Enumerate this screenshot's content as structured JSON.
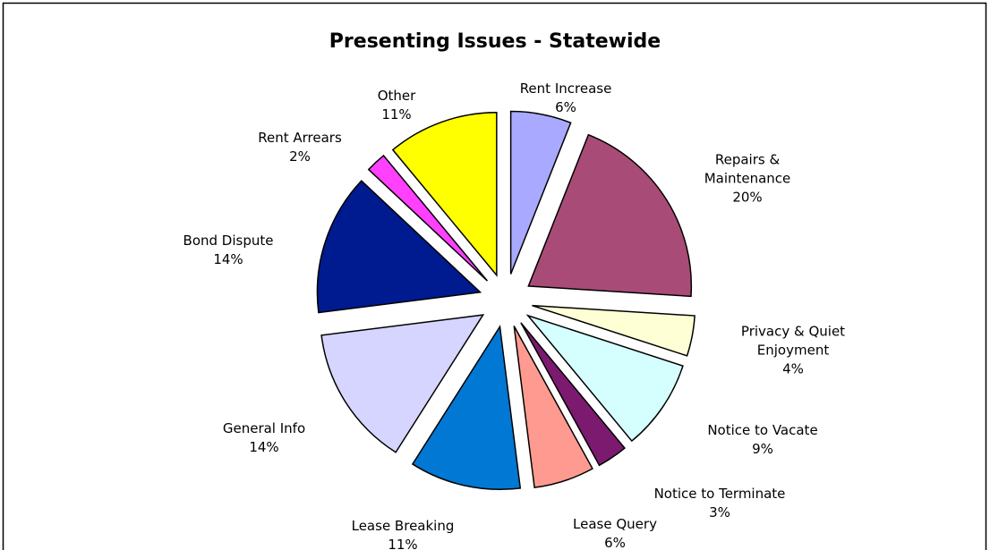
{
  "chart_data": {
    "type": "pie",
    "title": "Presenting Issues - Statewide",
    "categories": [
      "Rent Increase",
      "Repairs & Maintenance",
      "Privacy & Quiet Enjoyment",
      "Notice to Vacate",
      "Notice to Terminate",
      "Lease Query",
      "Lease Breaking",
      "General Info",
      "Bond Dispute",
      "Rent Arrears",
      "Other"
    ],
    "values": [
      6,
      20,
      4,
      9,
      3,
      6,
      11,
      14,
      14,
      2,
      11
    ],
    "value_labels": [
      "6%",
      "20%",
      "4%",
      "9%",
      "3%",
      "6%",
      "11%",
      "14%",
      "14%",
      "2%",
      "11%"
    ],
    "colors": [
      "#a9a9ff",
      "#a94b77",
      "#ffffd5",
      "#d5ffff",
      "#7b1a6e",
      "#ff9a90",
      "#0078d4",
      "#d5d5ff",
      "#001a8f",
      "#ff40ff",
      "#ffff00"
    ]
  }
}
